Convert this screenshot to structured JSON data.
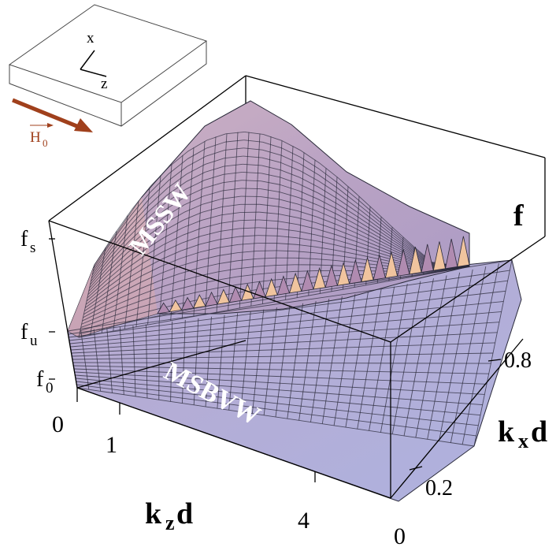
{
  "inset": {
    "axis_x": "x",
    "axis_z": "z",
    "field_label": "H",
    "field_sub": "0",
    "field_color": "#a0401c"
  },
  "axes": {
    "f_label": "f",
    "kx_label": "k",
    "kx_sub": "x",
    "kx_tail": "d",
    "kz_label": "k",
    "kz_sub": "z",
    "kz_tail": "d"
  },
  "left_ticks": {
    "fs": "f",
    "fs_sub": "s",
    "fu": "f",
    "fu_sub": "u",
    "f0": "f",
    "f0_sub": "0"
  },
  "kz_ticks": [
    "0",
    "1",
    "4"
  ],
  "kx_ticks": [
    "0.8",
    "0.2",
    "0"
  ],
  "surface_labels": {
    "mssw": "MSSW",
    "msbvw": "MSBVW"
  },
  "colors": {
    "upper_surface": "#c6a9c4",
    "lower_surface": "#b7b4dc",
    "ridge_peak": "#f0c49e",
    "mesh": "#2a2a3a"
  }
}
